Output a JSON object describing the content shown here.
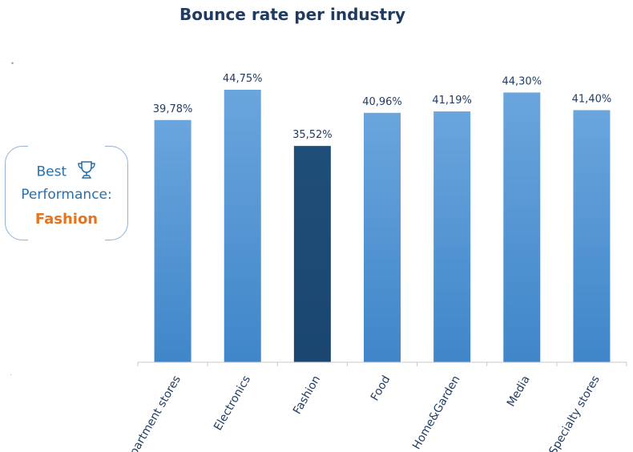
{
  "chart_data": {
    "type": "bar",
    "title": "Bounce rate per industry",
    "categories": [
      "Department stores",
      "Electronics",
      "Fashion",
      "Food",
      "Home&Garden",
      "Media",
      "Specialty stores"
    ],
    "values": [
      39.78,
      44.75,
      35.52,
      40.96,
      41.19,
      44.3,
      41.4
    ],
    "value_labels": [
      "39,78%",
      "44,75%",
      "35,52%",
      "40,96%",
      "41,19%",
      "44,30%",
      "41,40%"
    ],
    "unit": "%",
    "highlight_category": "Fashion",
    "colors": {
      "bar": "#5b9bd5",
      "bar_highlight": "#1f4e79",
      "axis": "#c8c8c8"
    },
    "grid": false,
    "legend": "none"
  },
  "callout": {
    "best_label": "Best",
    "performance_label": "Performance:",
    "winner": "Fashion",
    "icon": "trophy-icon"
  }
}
